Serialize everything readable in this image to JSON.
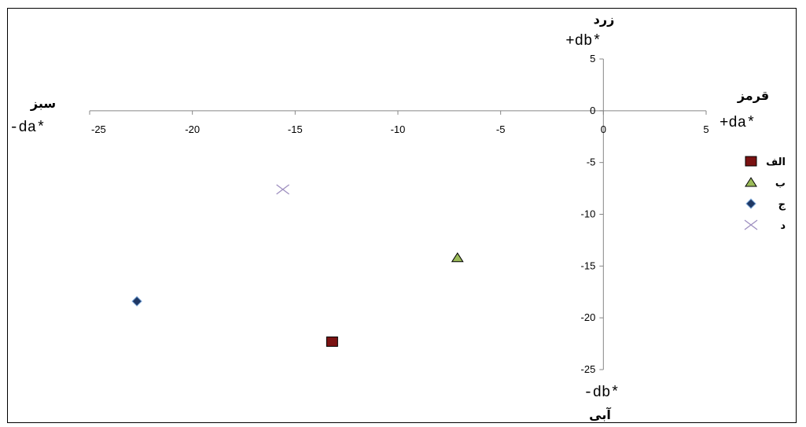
{
  "chart_data": {
    "type": "scatter",
    "xlim": [
      -25,
      5
    ],
    "ylim": [
      -25,
      5
    ],
    "x_ticks": [
      -25,
      -20,
      -15,
      -10,
      -5,
      0,
      5
    ],
    "y_ticks": [
      5,
      0,
      -5,
      -10,
      -15,
      -20,
      -25
    ],
    "axis_labels": {
      "x_positive": "+da*",
      "x_negative": "-da*",
      "y_positive": "+db*",
      "y_negative": "-db*",
      "x_positive_word": "قرمز",
      "x_negative_word": "سبز",
      "y_positive_word": "زرد",
      "y_negative_word": "آبی"
    },
    "grid": false,
    "legend_position": "right",
    "series": [
      {
        "name": "الف",
        "marker": "square",
        "color": "#7a1212",
        "points": [
          {
            "x": -13.2,
            "y": -22.3
          }
        ]
      },
      {
        "name": "ب",
        "marker": "triangle",
        "color": "#9bbb59",
        "points": [
          {
            "x": -7.1,
            "y": -14.2
          }
        ]
      },
      {
        "name": "ج",
        "marker": "diamond",
        "color": "#1f3864",
        "points": [
          {
            "x": -22.7,
            "y": -18.4
          }
        ]
      },
      {
        "name": "د",
        "marker": "x",
        "color": "#9e8fc0",
        "points": [
          {
            "x": -15.6,
            "y": -7.6
          }
        ]
      }
    ]
  }
}
